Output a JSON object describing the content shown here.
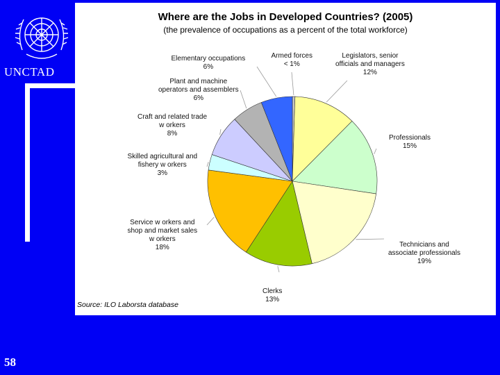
{
  "header": {
    "org_name": "UNCTAD",
    "page_number": "58"
  },
  "colors": {
    "background": "#0000f5",
    "panel": "#ffffff"
  },
  "icons": {
    "logo": "un-emblem-icon"
  },
  "chart_data": {
    "type": "pie",
    "title": "Where are the Jobs in Developed Countries? (2005)",
    "subtitle": "(the prevalence of occupations as a percent of the total workforce)",
    "source": "Source: ILO Laborsta database",
    "start_angle_deg": 0,
    "direction": "clockwise",
    "slices": [
      {
        "label_lines": [
          "Armed forces"
        ],
        "value_label": "< 1%",
        "value": 0.5,
        "color": "#c8c8c8"
      },
      {
        "label_lines": [
          "Legislators, senior",
          "officials and managers"
        ],
        "value_label": "12%",
        "value": 12,
        "color": "#ffff99"
      },
      {
        "label_lines": [
          "Professionals"
        ],
        "value_label": "15%",
        "value": 15,
        "color": "#ccffcc"
      },
      {
        "label_lines": [
          "Technicians and",
          "associate professionals"
        ],
        "value_label": "19%",
        "value": 19,
        "color": "#ffffcc"
      },
      {
        "label_lines": [
          "Clerks"
        ],
        "value_label": "13%",
        "value": 13,
        "color": "#99cc00"
      },
      {
        "label_lines": [
          "Service w orkers and",
          "shop and market sales",
          "w orkers"
        ],
        "value_label": "18%",
        "value": 18,
        "color": "#ffc000"
      },
      {
        "label_lines": [
          "Skilled agricultural and",
          "fishery w orkers"
        ],
        "value_label": "3%",
        "value": 3,
        "color": "#ccffff"
      },
      {
        "label_lines": [
          "Craft and related trade",
          "w orkers"
        ],
        "value_label": "8%",
        "value": 8,
        "color": "#ccccff"
      },
      {
        "label_lines": [
          "Plant and machine",
          "operators and assemblers"
        ],
        "value_label": "6%",
        "value": 6,
        "color": "#b3b3b3"
      },
      {
        "label_lines": [
          "Elementary occupations"
        ],
        "value_label": "6%",
        "value": 6,
        "color": "#3366ff"
      }
    ]
  }
}
